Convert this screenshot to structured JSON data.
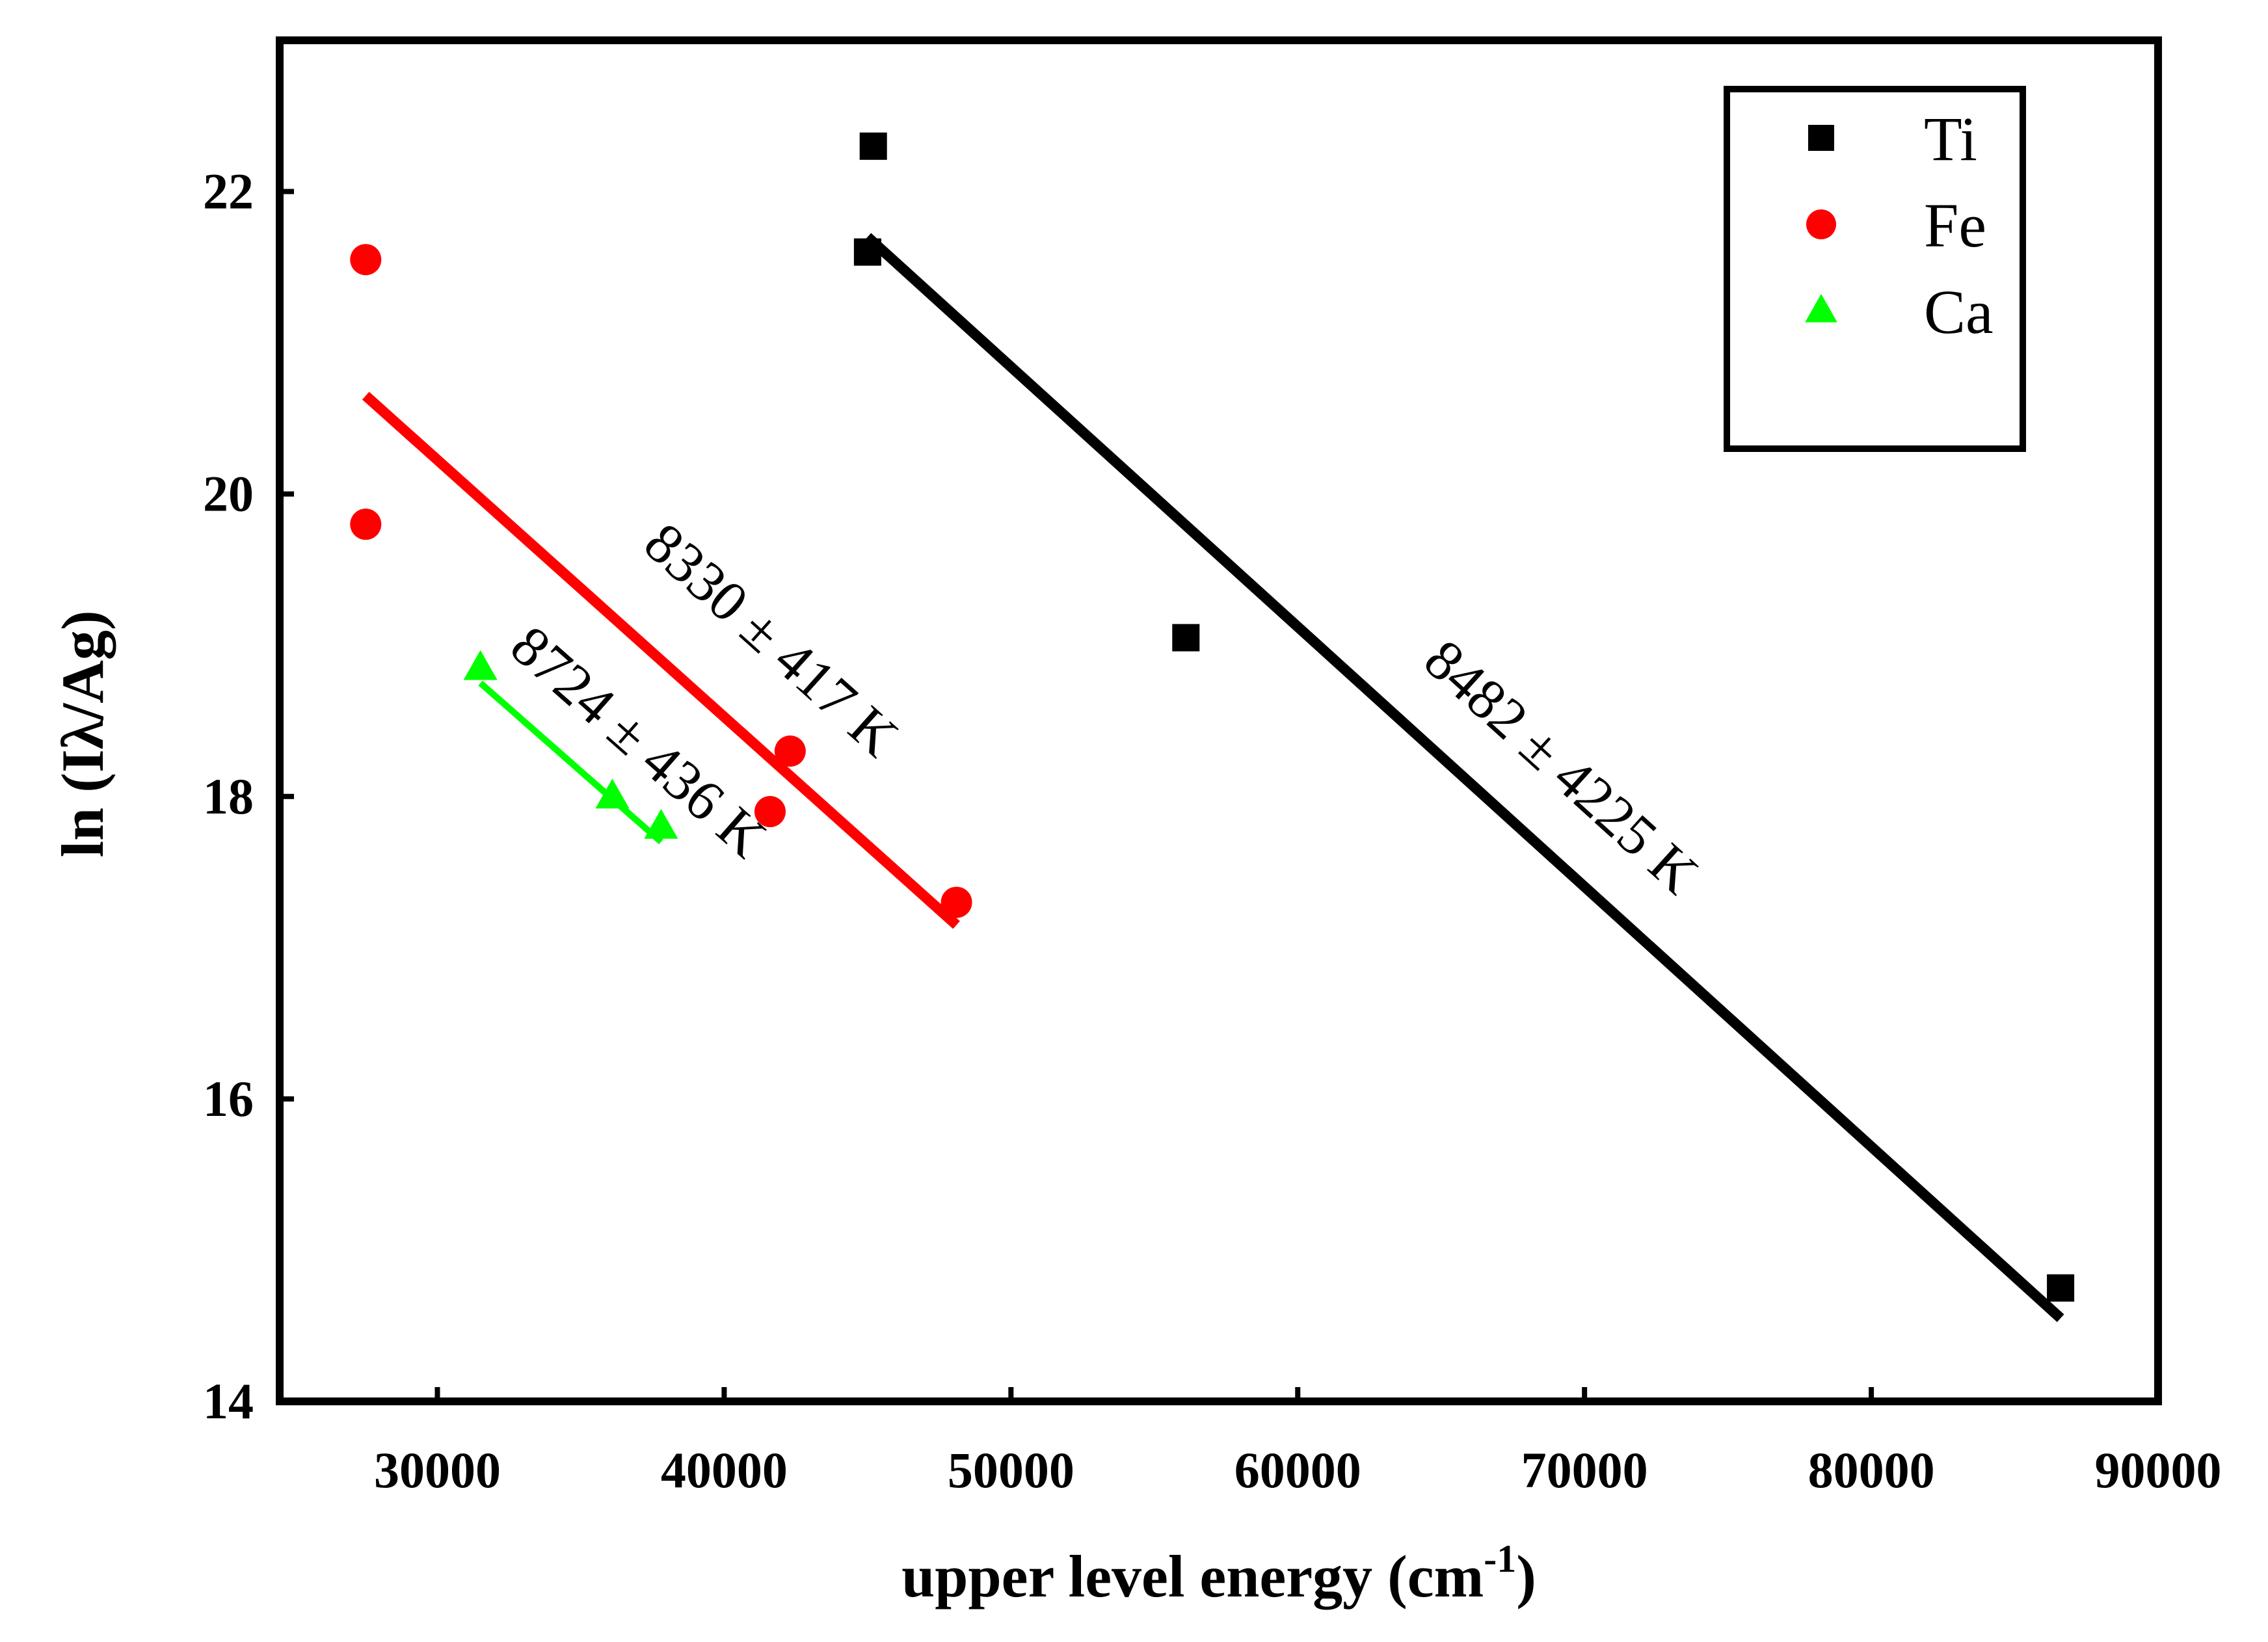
{
  "chart_data": {
    "type": "scatter",
    "title": "",
    "xlabel_main": "upper level energy (cm",
    "xlabel_sup": "-1",
    "xlabel_close": ")",
    "ylabel": "ln (Iλ/Ag)",
    "xlim": [
      24500,
      90000
    ],
    "ylim": [
      14,
      23
    ],
    "xticks": [
      30000,
      40000,
      50000,
      60000,
      70000,
      80000,
      90000
    ],
    "xtick_labels": [
      "30000",
      "40000",
      "50000",
      "60000",
      "70000",
      "80000",
      "90000"
    ],
    "yticks": [
      14,
      16,
      18,
      20,
      22
    ],
    "ytick_labels": [
      "14",
      "16",
      "18",
      "20",
      "22"
    ],
    "grid": false,
    "legend_position": "top-right",
    "series": [
      {
        "name": "Ti",
        "marker": "square",
        "color": "#000000",
        "points": [
          {
            "x": 45200,
            "y": 22.3
          },
          {
            "x": 45000,
            "y": 21.6
          },
          {
            "x": 56100,
            "y": 19.05
          },
          {
            "x": 86600,
            "y": 14.75
          }
        ],
        "fit": {
          "x1": 45000,
          "y1": 21.7,
          "x2": 86600,
          "y2": 14.55
        },
        "annotation": "8482 ± 4225 K"
      },
      {
        "name": "Fe",
        "marker": "circle",
        "color": "#ff0000",
        "points": [
          {
            "x": 27500,
            "y": 21.55
          },
          {
            "x": 27500,
            "y": 19.8
          },
          {
            "x": 42300,
            "y": 18.3
          },
          {
            "x": 41600,
            "y": 17.9
          },
          {
            "x": 48100,
            "y": 17.3
          }
        ],
        "fit": {
          "x1": 27500,
          "y1": 20.65,
          "x2": 48100,
          "y2": 17.15
        },
        "annotation": "8330 ± 417 K"
      },
      {
        "name": "Ca",
        "marker": "triangle",
        "color": "#00ff00",
        "points": [
          {
            "x": 31500,
            "y": 18.85
          },
          {
            "x": 36100,
            "y": 18.0
          },
          {
            "x": 37800,
            "y": 17.8
          }
        ],
        "fit": {
          "x1": 31500,
          "y1": 18.75,
          "x2": 37800,
          "y2": 17.7
        },
        "annotation": "8724 ± 436 K"
      }
    ]
  }
}
